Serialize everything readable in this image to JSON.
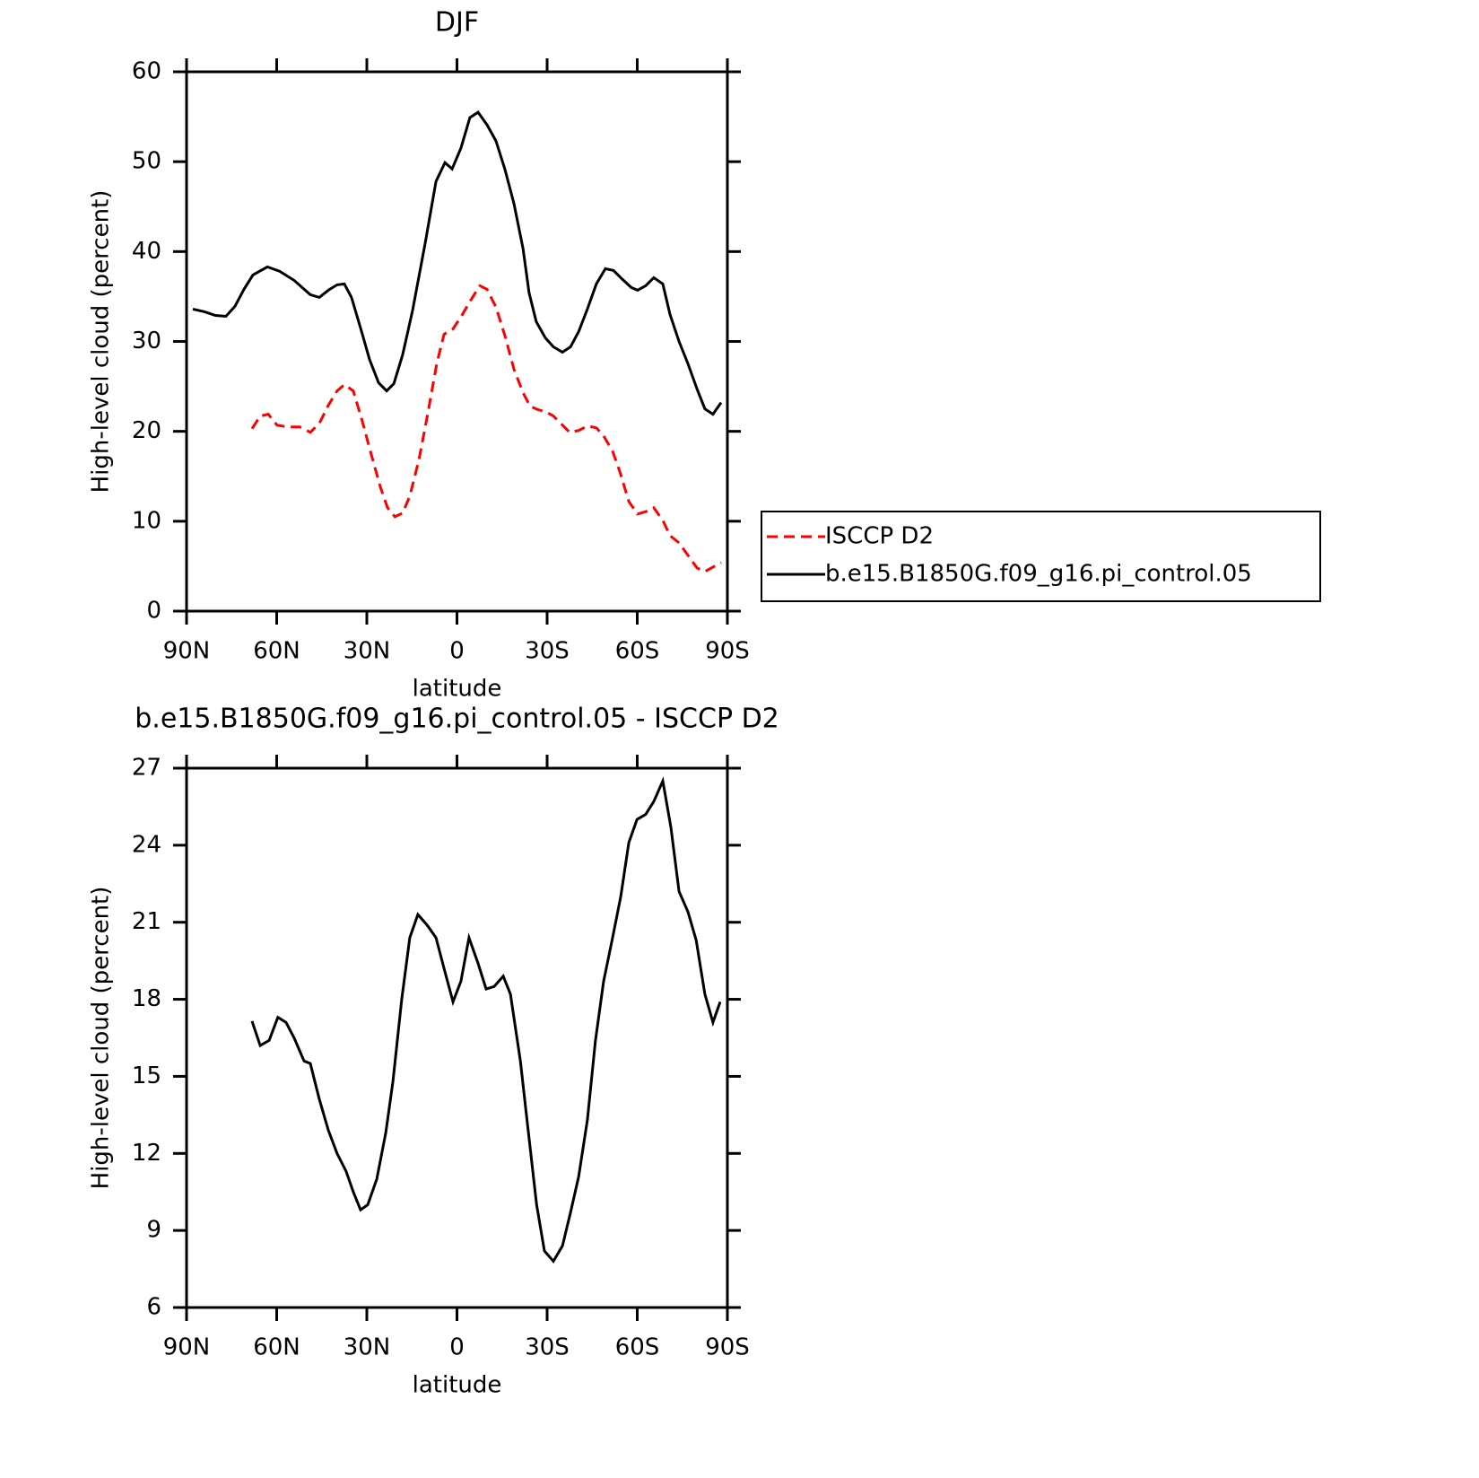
{
  "chart_data": [
    {
      "type": "line",
      "title": "DJF",
      "xlabel": "latitude",
      "ylabel": "High-level cloud (percent)",
      "xlim": [
        90,
        -90
      ],
      "xticks": [
        {
          "value": 90,
          "label": "90N"
        },
        {
          "value": 60,
          "label": "60N"
        },
        {
          "value": 30,
          "label": "30N"
        },
        0,
        {
          "value": -30,
          "label": "30S"
        },
        {
          "value": -60,
          "label": "60S"
        },
        {
          "value": -90,
          "label": "90S"
        }
      ],
      "ylim": [
        0,
        60
      ],
      "yticks": [
        0,
        10,
        20,
        30,
        40,
        50,
        60
      ],
      "legend": "right",
      "series": [
        {
          "name": "ISCCP D2",
          "color": "#ff0000",
          "dash": "dashed",
          "x": [
            68.2,
            65.5,
            62.8,
            59.9,
            56.6,
            52.4,
            48.8,
            45.8,
            42.8,
            39.9,
            37.5,
            34.5,
            31.5,
            28.5,
            25.5,
            23.1,
            20.7,
            18.1,
            15.7,
            12.7,
            9.7,
            6.7,
            4.3,
            1.3,
            -1.6,
            -4.6,
            -7.6,
            -10,
            -13,
            -16,
            -19,
            -22,
            -24.3,
            -27,
            -29.4,
            -32.1,
            -35.1,
            -37.5,
            -40.5,
            -43.4,
            -46.4,
            -48.8,
            -51.8,
            -54.2,
            -57.2,
            -60.1,
            -63.1,
            -65.5,
            -68.5,
            -70.9,
            -73.9,
            -76.9,
            -79.9,
            -82.5,
            -85.2,
            -87.9
          ],
          "values": [
            20.3,
            21.7,
            21.9,
            20.7,
            20.5,
            20.5,
            19.9,
            20.9,
            22.9,
            24.5,
            25.2,
            24.5,
            21.1,
            17.4,
            13.8,
            11.5,
            10.5,
            10.9,
            12.8,
            16.8,
            22.0,
            27.6,
            30.8,
            31.4,
            32.9,
            34.6,
            36.2,
            35.8,
            33.8,
            30.6,
            26.9,
            24.3,
            22.8,
            22.4,
            22.2,
            21.7,
            20.7,
            19.9,
            20.1,
            20.6,
            20.4,
            19.5,
            17.8,
            15.5,
            12.2,
            10.8,
            11.1,
            11.5,
            10.1,
            8.4,
            7.6,
            6.2,
            4.8,
            4.4,
            4.9,
            5.4
          ]
        },
        {
          "name": "b.e15.B1850G.f09_g16.pi_control.05",
          "color": "#000000",
          "dash": "solid",
          "x": [
            87.9,
            84,
            80.4,
            76.9,
            73.9,
            70.9,
            67.9,
            63.1,
            59,
            54.2,
            48.8,
            45.8,
            42.8,
            39.9,
            37.5,
            35.1,
            32.1,
            29.1,
            26.1,
            23.4,
            21,
            18.1,
            14.8,
            10.6,
            7,
            4,
            1.6,
            -1.3,
            -4.3,
            -7,
            -10,
            -13,
            -16,
            -19,
            -22,
            -24,
            -26.4,
            -29.4,
            -32.1,
            -35.1,
            -37.8,
            -40.5,
            -43.4,
            -46.4,
            -49.4,
            -52.1,
            -55.1,
            -58,
            -60.1,
            -62.8,
            -65.5,
            -68.5,
            -70.9,
            -73.9,
            -76.9,
            -79.9,
            -82.5,
            -85.2,
            -87.9
          ],
          "values": [
            33.6,
            33.3,
            32.9,
            32.8,
            33.9,
            35.8,
            37.4,
            38.3,
            37.8,
            36.8,
            35.2,
            34.9,
            35.7,
            36.3,
            36.4,
            34.9,
            31.5,
            28.0,
            25.4,
            24.5,
            25.3,
            28.5,
            33.4,
            40.9,
            47.8,
            49.9,
            49.2,
            51.5,
            54.9,
            55.5,
            54.1,
            52.3,
            49.1,
            45.3,
            40.3,
            35.4,
            32.2,
            30.4,
            29.4,
            28.8,
            29.4,
            31.1,
            33.6,
            36.4,
            38.1,
            37.9,
            36.9,
            36.0,
            35.7,
            36.2,
            37.1,
            36.4,
            33.0,
            30.0,
            27.5,
            24.7,
            22.5,
            21.9,
            23.2
          ]
        }
      ]
    },
    {
      "type": "line",
      "title": "b.e15.B1850G.f09_g16.pi_control.05 - ISCCP D2",
      "xlabel": "latitude",
      "ylabel": "High-level cloud (percent)",
      "xlim": [
        90,
        -90
      ],
      "xticks": [
        {
          "value": 90,
          "label": "90N"
        },
        {
          "value": 60,
          "label": "60N"
        },
        {
          "value": 30,
          "label": "30N"
        },
        0,
        {
          "value": -30,
          "label": "30S"
        },
        {
          "value": -60,
          "label": "60S"
        },
        {
          "value": -90,
          "label": "90S"
        }
      ],
      "ylim": [
        6,
        27
      ],
      "yticks": [
        6,
        9,
        12,
        15,
        18,
        21,
        24,
        27
      ],
      "series": [
        {
          "color": "#000000",
          "dash": "solid",
          "x": [
            68.2,
            65.5,
            62.5,
            59.6,
            56.9,
            54.2,
            50.9,
            48.8,
            45.8,
            42.8,
            39.9,
            36.9,
            34.5,
            32.1,
            29.7,
            26.7,
            23.7,
            21.3,
            18.4,
            15.7,
            13,
            10,
            7,
            4.3,
            1.3,
            -1.3,
            -4,
            -7,
            -9.7,
            -12.4,
            -15.4,
            -17.8,
            -21.1,
            -23.8,
            -26.5,
            -29.1,
            -32.1,
            -35.1,
            -37.8,
            -40.5,
            -43.4,
            -46.1,
            -48.8,
            -51.8,
            -54.5,
            -57.2,
            -59.9,
            -62.8,
            -65.5,
            -68.5,
            -71.2,
            -73.9,
            -76.9,
            -79.6,
            -82.5,
            -85.2,
            -87.6
          ],
          "values": [
            17.15,
            16.2,
            16.4,
            17.3,
            17.1,
            16.5,
            15.6,
            15.5,
            14.1,
            12.9,
            12.0,
            11.3,
            10.5,
            9.8,
            10.0,
            11.0,
            12.8,
            14.8,
            18.0,
            20.4,
            21.3,
            20.9,
            20.4,
            19.2,
            17.9,
            18.7,
            20.4,
            19.4,
            18.4,
            18.5,
            18.9,
            18.2,
            15.6,
            12.8,
            10.0,
            8.2,
            7.8,
            8.4,
            9.7,
            11.1,
            13.3,
            16.4,
            18.7,
            20.4,
            22.0,
            24.1,
            25.0,
            25.2,
            25.7,
            26.5,
            24.7,
            22.2,
            21.4,
            20.3,
            18.2,
            17.1,
            17.9
          ]
        }
      ]
    }
  ]
}
